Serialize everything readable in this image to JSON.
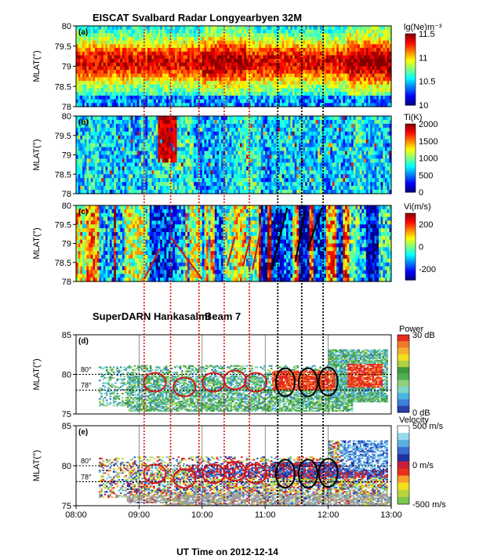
{
  "chart_data": {
    "type": "heatmap",
    "titles": {
      "eiscat": "EISCAT Svalbard Radar Longyearbyen 32M",
      "superdarn": "SuperDARN Hankasalmi",
      "beam": "Beam 7"
    },
    "xlabel": "UT Time on 2012-12-14",
    "x_ticks": [
      "08:00",
      "09:00",
      "10:00",
      "11:00",
      "12:00",
      "13:00"
    ],
    "xlim": [
      8,
      13
    ],
    "panels": [
      {
        "tag": "(a)",
        "ylabel": "MLAT(°)",
        "ylim": [
          78,
          80
        ],
        "y_ticks": [
          "80",
          "79.5",
          "79",
          "78.5",
          "78"
        ],
        "colorbar": {
          "label": "lg(Ne)m⁻³",
          "ticks": [
            "11.5",
            "11",
            "10.5",
            "10"
          ],
          "range": [
            10,
            11.5
          ]
        }
      },
      {
        "tag": "(b)",
        "ylabel": "MLAT(°)",
        "ylim": [
          78,
          80
        ],
        "y_ticks": [
          "80",
          "79.5",
          "79",
          "78.5",
          "78"
        ],
        "colorbar": {
          "label": "Ti(K)",
          "ticks": [
            "2000",
            "1500",
            "1000",
            "500",
            "0"
          ],
          "range": [
            0,
            2000
          ]
        }
      },
      {
        "tag": "(c)",
        "ylabel": "MLAT(°)",
        "ylim": [
          78,
          80
        ],
        "y_ticks": [
          "80",
          "79.5",
          "79",
          "78.5",
          "78"
        ],
        "colorbar": {
          "label": "Vi(m/s)",
          "ticks": [
            "200",
            "0",
            "-200"
          ],
          "range": [
            -300,
            300
          ]
        }
      },
      {
        "tag": "(d)",
        "ylabel": "MLAT(°)",
        "ylim": [
          75,
          85
        ],
        "y_ticks": [
          "85",
          "80",
          "75"
        ],
        "ref_lines": [
          "80°",
          "78°"
        ],
        "colorbar": {
          "label": "Power",
          "ticks": [
            "30 dB",
            "0 dB"
          ],
          "range": [
            0,
            30
          ]
        }
      },
      {
        "tag": "(e)",
        "ylabel": "MLAT(°)",
        "ylim": [
          75,
          85
        ],
        "y_ticks": [
          "85",
          "80",
          "75"
        ],
        "ref_lines": [
          "80°",
          "78°"
        ],
        "colorbar": {
          "label": "Velocity",
          "ticks": [
            "500 m/s",
            "0 m/s",
            "-500 m/s"
          ],
          "range": [
            -500,
            500
          ]
        }
      }
    ],
    "red_dotted_times_ut": [
      9.08,
      9.5,
      9.95,
      10.35,
      10.75
    ],
    "black_dotted_times_ut": [
      11.2,
      11.58,
      11.92
    ],
    "red_ellipses_mlat": [
      {
        "t": 9.25,
        "mlat": 79.0
      },
      {
        "t": 9.72,
        "mlat": 78.4
      },
      {
        "t": 10.18,
        "mlat": 79.0
      },
      {
        "t": 10.52,
        "mlat": 79.3
      },
      {
        "t": 10.85,
        "mlat": 79.0
      }
    ],
    "black_ellipses_mlat": [
      {
        "t": 11.32,
        "mlat": 79.0
      },
      {
        "t": 11.68,
        "mlat": 79.0
      },
      {
        "t": 12.0,
        "mlat": 79.1
      }
    ]
  }
}
